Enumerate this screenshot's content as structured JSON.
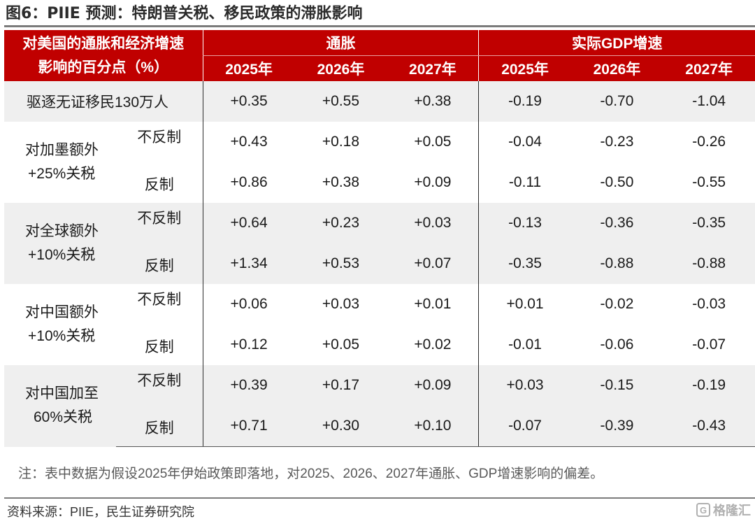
{
  "title": "图6：PIIE 预测：特朗普关税、移民政策的滞胀影响",
  "header": {
    "label_line1": "对美国的通胀和经济增速",
    "label_line2": "影响的百分点（%）",
    "group_inflation": "通胀",
    "group_gdp": "实际GDP增速",
    "years": [
      "2025年",
      "2026年",
      "2027年",
      "2025年",
      "2026年",
      "2027年"
    ]
  },
  "rows": {
    "deport": {
      "label": "驱逐无证移民130万人",
      "values": [
        "+0.35",
        "+0.55",
        "+0.38",
        "-0.19",
        "-0.70",
        "-1.04"
      ]
    },
    "mexcan": {
      "label_line1": "对加墨额外",
      "label_line2": "+25%关税",
      "sub_no": "不反制",
      "sub_yes": "反制",
      "values_no": [
        "+0.43",
        "+0.18",
        "+0.05",
        "-0.04",
        "-0.23",
        "-0.26"
      ],
      "values_yes": [
        "+0.86",
        "+0.38",
        "+0.09",
        "-0.11",
        "-0.50",
        "-0.55"
      ]
    },
    "global": {
      "label_line1": "对全球额外",
      "label_line2": "+10%关税",
      "sub_no": "不反制",
      "sub_yes": "反制",
      "values_no": [
        "+0.64",
        "+0.23",
        "+0.03",
        "-0.13",
        "-0.36",
        "-0.35"
      ],
      "values_yes": [
        "+1.34",
        "+0.53",
        "+0.07",
        "-0.35",
        "-0.88",
        "-0.88"
      ]
    },
    "china10": {
      "label_line1": "对中国额外",
      "label_line2": "+10%关税",
      "sub_no": "不反制",
      "sub_yes": "反制",
      "values_no": [
        "+0.06",
        "+0.03",
        "+0.01",
        "+0.01",
        "-0.02",
        "-0.03"
      ],
      "values_yes": [
        "+0.12",
        "+0.05",
        "+0.02",
        "-0.01",
        "-0.06",
        "-0.07"
      ]
    },
    "china60": {
      "label_line1": "对中国加至",
      "label_line2": "60%关税",
      "sub_no": "不反制",
      "sub_yes": "反制",
      "values_no": [
        "+0.39",
        "+0.17",
        "+0.09",
        "+0.03",
        "-0.15",
        "-0.19"
      ],
      "values_yes": [
        "+0.71",
        "+0.30",
        "+0.10",
        "-0.07",
        "-0.39",
        "-0.43"
      ]
    }
  },
  "note": "注：表中数据为假设2025年伊始政策即落地，对2025、2026、2027年通胀、GDP增速影响的偏差。",
  "source": "资料来源：PIIE，民生证券研究院",
  "watermark": "格隆汇",
  "colors": {
    "header_bg": "#c00000",
    "row_shade": "#efefef"
  }
}
